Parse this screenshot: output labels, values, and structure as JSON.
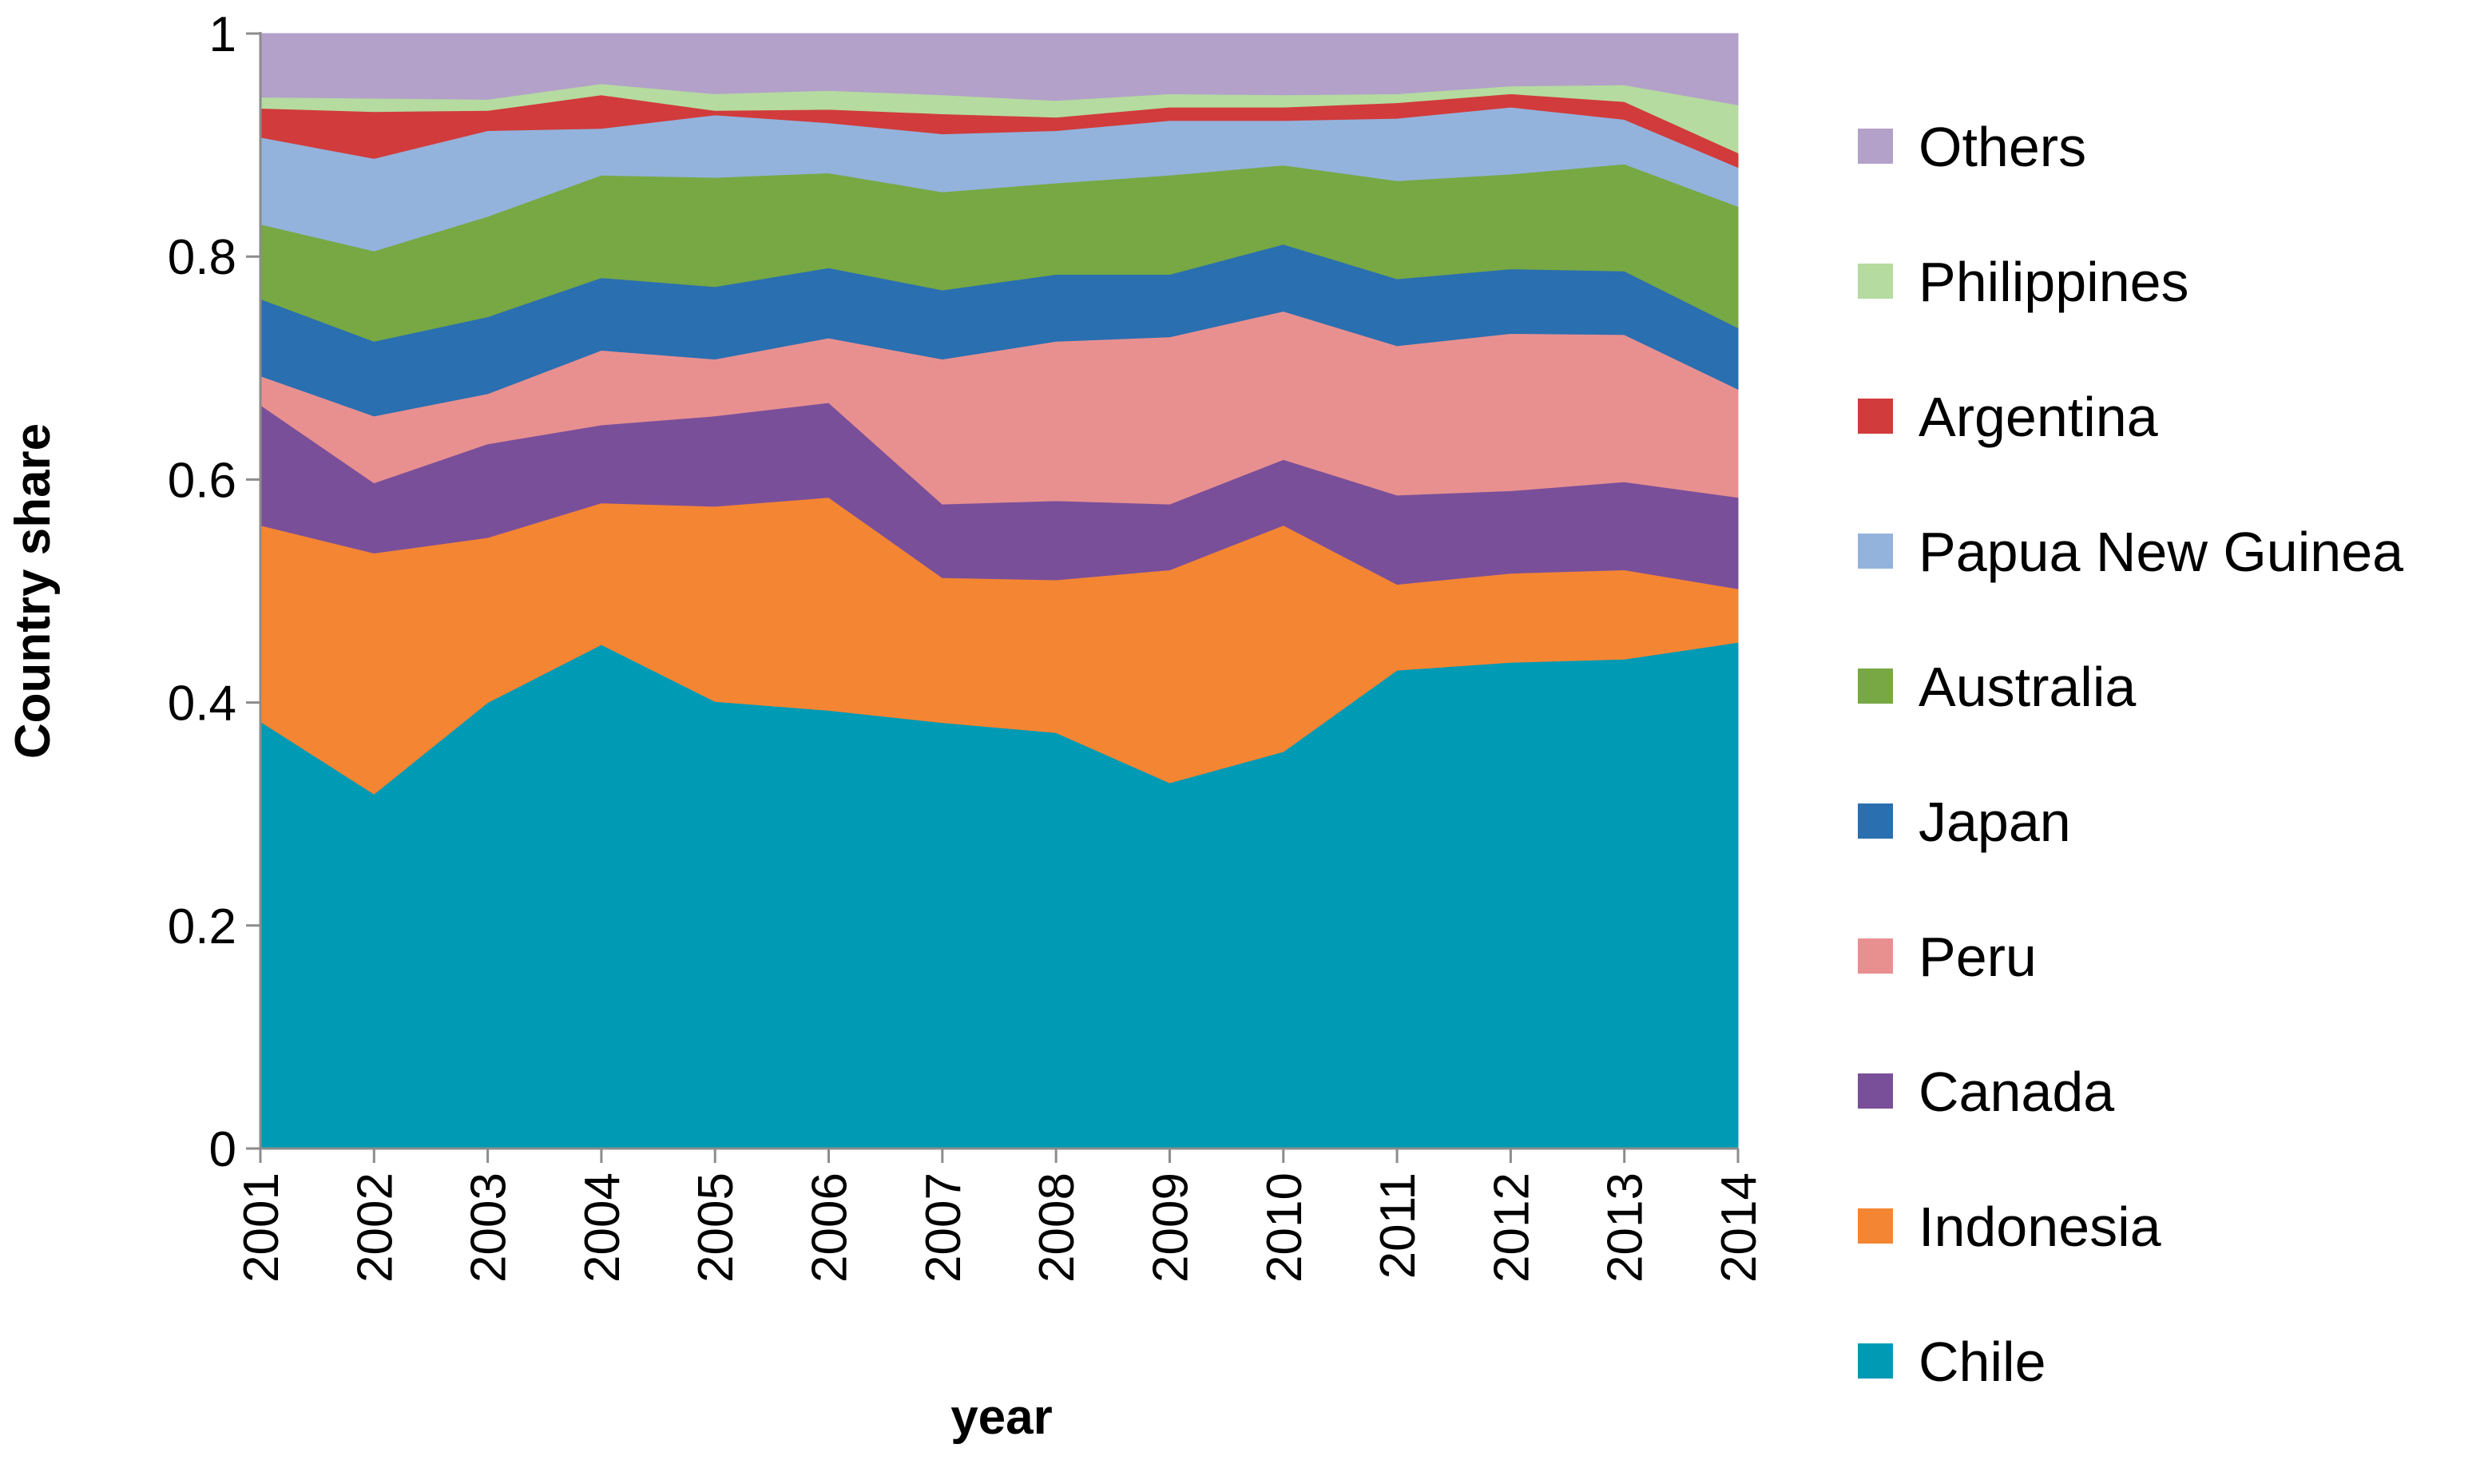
{
  "chart_data": {
    "type": "area",
    "stacked": true,
    "xlabel": "year",
    "ylabel": "Country share",
    "ylim": [
      0,
      1
    ],
    "yticks": [
      0,
      0.2,
      0.4,
      0.6,
      0.8,
      1
    ],
    "ytick_labels": [
      "0",
      "0.2",
      "0.4",
      "0.6",
      "0.8",
      "1"
    ],
    "x": [
      "2001",
      "2002",
      "2003",
      "2004",
      "2005",
      "2006",
      "2007",
      "2008",
      "2009",
      "2010",
      "2011",
      "2012",
      "2013",
      "2014"
    ],
    "grid": false,
    "legend": "right",
    "series": [
      {
        "name": "Chile",
        "color": "#009ab5",
        "values": [
          0.383,
          0.318,
          0.4,
          0.452,
          0.401,
          0.393,
          0.382,
          0.373,
          0.328,
          0.356,
          0.429,
          0.436,
          0.439,
          0.454
        ]
      },
      {
        "name": "Indonesia",
        "color": "#f48533",
        "values": [
          0.176,
          0.216,
          0.148,
          0.127,
          0.175,
          0.191,
          0.13,
          0.137,
          0.191,
          0.203,
          0.077,
          0.08,
          0.08,
          0.048
        ]
      },
      {
        "name": "Canada",
        "color": "#7a4f9a",
        "values": [
          0.108,
          0.063,
          0.084,
          0.07,
          0.081,
          0.085,
          0.066,
          0.071,
          0.059,
          0.059,
          0.08,
          0.074,
          0.079,
          0.082
        ]
      },
      {
        "name": "Peru",
        "color": "#e89090",
        "values": [
          0.026,
          0.06,
          0.045,
          0.067,
          0.051,
          0.058,
          0.13,
          0.143,
          0.15,
          0.133,
          0.134,
          0.141,
          0.132,
          0.097
        ]
      },
      {
        "name": "Japan",
        "color": "#2a6fb0",
        "values": [
          0.069,
          0.067,
          0.069,
          0.065,
          0.065,
          0.063,
          0.062,
          0.06,
          0.056,
          0.06,
          0.06,
          0.058,
          0.057,
          0.055
        ]
      },
      {
        "name": "Australia",
        "color": "#77a843",
        "values": [
          0.067,
          0.081,
          0.09,
          0.092,
          0.098,
          0.085,
          0.088,
          0.082,
          0.089,
          0.071,
          0.088,
          0.085,
          0.096,
          0.109
        ]
      },
      {
        "name": "Papua New Guinea",
        "color": "#93b3dc",
        "values": [
          0.078,
          0.083,
          0.077,
          0.042,
          0.056,
          0.045,
          0.052,
          0.047,
          0.049,
          0.04,
          0.056,
          0.06,
          0.04,
          0.035
        ]
      },
      {
        "name": "Argentina",
        "color": "#d13b3b",
        "values": [
          0.026,
          0.042,
          0.018,
          0.03,
          0.004,
          0.012,
          0.018,
          0.012,
          0.012,
          0.012,
          0.014,
          0.012,
          0.016,
          0.013
        ]
      },
      {
        "name": "Philippines",
        "color": "#b5dba0",
        "values": [
          0.01,
          0.012,
          0.01,
          0.01,
          0.015,
          0.017,
          0.017,
          0.015,
          0.012,
          0.011,
          0.008,
          0.007,
          0.015,
          0.043
        ]
      },
      {
        "name": "Others",
        "color": "#b3a1c9",
        "values": [
          0.057,
          0.058,
          0.059,
          0.045,
          0.054,
          0.051,
          0.055,
          0.06,
          0.054,
          0.055,
          0.054,
          0.047,
          0.046,
          0.064
        ]
      }
    ]
  }
}
